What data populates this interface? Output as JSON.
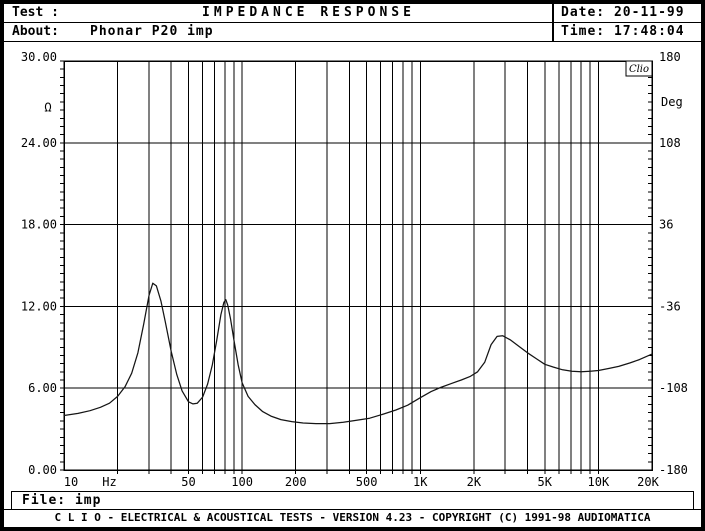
{
  "header": {
    "test_label": "Test :",
    "title": "IMPEDANCE RESPONSE",
    "date_label": "Date:",
    "date_value": "20-11-99",
    "about_label": "About:",
    "about_value": "Phonar P20 imp",
    "time_label": "Time:",
    "time_value": "17:48:04"
  },
  "file_bar": {
    "label": "File:",
    "value": "imp"
  },
  "footer": {
    "text": "C L I O  -  ELECTRICAL & ACOUSTICAL TESTS  -  VERSION 4.23  -  COPYRIGHT (C) 1991-98 AUDIOMATICA"
  },
  "chart_data": {
    "type": "line",
    "title": "IMPEDANCE RESPONSE",
    "watermark": "Clio",
    "grid": true,
    "x_axis": {
      "scale": "log",
      "min": 10,
      "max": 20000,
      "unit": "Hz",
      "gridlines": [
        20,
        30,
        40,
        50,
        60,
        70,
        80,
        90,
        100,
        200,
        300,
        400,
        500,
        600,
        700,
        800,
        900,
        1000,
        2000,
        3000,
        4000,
        5000,
        6000,
        7000,
        8000,
        9000,
        10000
      ],
      "ticks": [
        {
          "label": "10",
          "f": 10,
          "dx": 7
        },
        {
          "label": "50",
          "f": 50
        },
        {
          "label": "100",
          "f": 100
        },
        {
          "label": "200",
          "f": 200
        },
        {
          "label": "500",
          "f": 500
        },
        {
          "label": "1K",
          "f": 1000
        },
        {
          "label": "2K",
          "f": 2000
        },
        {
          "label": "5K",
          "f": 5000
        },
        {
          "label": "10K",
          "f": 10000
        },
        {
          "label": "20K",
          "f": 20000,
          "dx": -4
        }
      ],
      "unit_label": {
        "text": "Hz",
        "f": 18
      }
    },
    "y_left": {
      "unit": "Ω",
      "min": 0,
      "max": 30,
      "gridlines": [
        6,
        12,
        18,
        24
      ],
      "minor_tick_step": 0.6,
      "ticks": [
        {
          "label": "30.00",
          "v": 30,
          "dy": -4
        },
        {
          "label": "24.00",
          "v": 24
        },
        {
          "label": "18.00",
          "v": 18
        },
        {
          "label": "12.00",
          "v": 12
        },
        {
          "label": "6.00",
          "v": 6
        },
        {
          "label": "0.00",
          "v": 0
        }
      ],
      "unit_label": {
        "text": "Ω",
        "v": 26.6
      }
    },
    "y_right": {
      "unit": "Deg",
      "min": -180,
      "max": 180,
      "minor_tick_step": 7.2,
      "ticks": [
        {
          "label": "180",
          "v": 180,
          "dy": -4
        },
        {
          "label": "108",
          "v": 108
        },
        {
          "label": "36",
          "v": 36
        },
        {
          "label": "-36",
          "v": -36
        },
        {
          "label": "-108",
          "v": -108
        },
        {
          "label": "-180",
          "v": -180
        }
      ],
      "unit_label": {
        "text": "Deg",
        "v": 144
      }
    },
    "series": [
      {
        "name": "impedance",
        "unit": "Ohm",
        "color": "#151515",
        "points": [
          [
            10,
            4.0
          ],
          [
            12,
            4.15
          ],
          [
            14,
            4.35
          ],
          [
            16,
            4.6
          ],
          [
            18,
            4.9
          ],
          [
            20,
            5.4
          ],
          [
            22,
            6.1
          ],
          [
            24,
            7.1
          ],
          [
            26,
            8.6
          ],
          [
            28,
            10.7
          ],
          [
            30,
            12.8
          ],
          [
            31.5,
            13.7
          ],
          [
            33,
            13.5
          ],
          [
            35,
            12.4
          ],
          [
            37,
            10.9
          ],
          [
            40,
            8.7
          ],
          [
            43,
            7.0
          ],
          [
            46,
            5.8
          ],
          [
            50,
            5.0
          ],
          [
            53,
            4.85
          ],
          [
            56,
            4.9
          ],
          [
            60,
            5.35
          ],
          [
            64,
            6.3
          ],
          [
            68,
            7.7
          ],
          [
            72,
            9.5
          ],
          [
            76,
            11.4
          ],
          [
            79,
            12.3
          ],
          [
            81,
            12.5
          ],
          [
            83,
            12.1
          ],
          [
            86,
            11.1
          ],
          [
            90,
            9.5
          ],
          [
            95,
            7.7
          ],
          [
            100,
            6.4
          ],
          [
            108,
            5.4
          ],
          [
            118,
            4.8
          ],
          [
            130,
            4.3
          ],
          [
            145,
            3.95
          ],
          [
            165,
            3.7
          ],
          [
            190,
            3.55
          ],
          [
            220,
            3.45
          ],
          [
            260,
            3.4
          ],
          [
            310,
            3.4
          ],
          [
            370,
            3.5
          ],
          [
            440,
            3.65
          ],
          [
            520,
            3.8
          ],
          [
            620,
            4.1
          ],
          [
            730,
            4.4
          ],
          [
            850,
            4.75
          ],
          [
            1000,
            5.3
          ],
          [
            1150,
            5.75
          ],
          [
            1300,
            6.05
          ],
          [
            1500,
            6.35
          ],
          [
            1700,
            6.6
          ],
          [
            1900,
            6.85
          ],
          [
            2100,
            7.2
          ],
          [
            2300,
            7.9
          ],
          [
            2500,
            9.2
          ],
          [
            2700,
            9.8
          ],
          [
            2900,
            9.85
          ],
          [
            3200,
            9.55
          ],
          [
            3600,
            9.05
          ],
          [
            4000,
            8.6
          ],
          [
            4500,
            8.15
          ],
          [
            5000,
            7.75
          ],
          [
            5600,
            7.55
          ],
          [
            6300,
            7.35
          ],
          [
            7100,
            7.25
          ],
          [
            8000,
            7.2
          ],
          [
            9000,
            7.25
          ],
          [
            10000,
            7.3
          ],
          [
            11500,
            7.45
          ],
          [
            13000,
            7.6
          ],
          [
            15000,
            7.85
          ],
          [
            17000,
            8.1
          ],
          [
            20000,
            8.5
          ]
        ]
      }
    ]
  }
}
